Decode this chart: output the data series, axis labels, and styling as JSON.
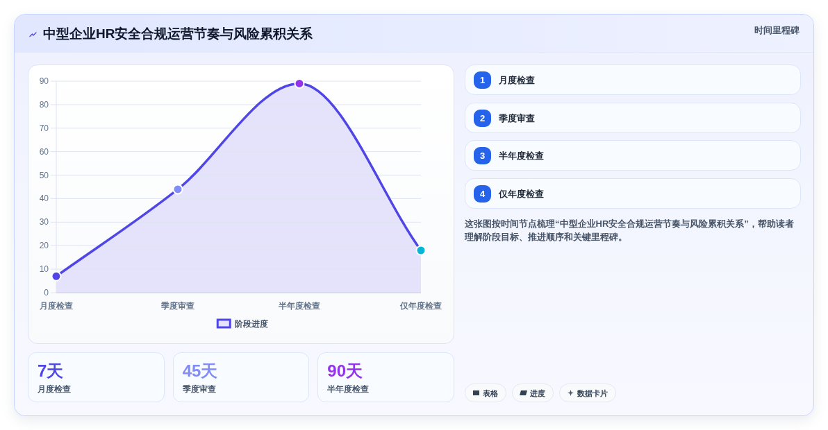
{
  "chart_data": [
    {
      "type": "area",
      "title": "中型企业HR安全合规运营节奏与风险累积关系",
      "categories": [
        "月度检查",
        "季度审查",
        "半年度检查",
        "仅年度检查"
      ],
      "series": [
        {
          "name": "阶段进度",
          "color": "#4f46e5",
          "values": [
            7,
            44,
            89,
            18
          ]
        }
      ],
      "colors": [
        "#4f46e5",
        "#818cf8",
        "#9333ea",
        "#06b6d4"
      ],
      "ylim": [
        0,
        90
      ],
      "yticks": [
        0,
        10,
        20,
        30,
        40,
        50,
        60,
        70,
        80,
        90
      ],
      "grid": "y",
      "legend": "bottom",
      "marker": "circle",
      "line_style": "solid"
    },
    {
      "type": "other",
      "categories": [
        "月度检查",
        "季度审查",
        "半年度检查"
      ],
      "value_labels": [
        "7天",
        "45天",
        "90天"
      ]
    },
    {
      "type": "other",
      "title": "时间里程碑",
      "categories": [
        "月度检查",
        "季度审查",
        "半年度检查",
        "仅年度检查"
      ],
      "values": [
        1,
        2,
        3,
        4
      ],
      "data_labels": true,
      "color": "#2563eb",
      "annotations": [
        "这张图按时间节点梳理“中型企业HR安全合规运营节奏与风险累积关系”，帮助读者理解阶段目标、推进顺序和关键里程碑。",
        "表格",
        "进度",
        "数据卡片"
      ]
    }
  ]
}
